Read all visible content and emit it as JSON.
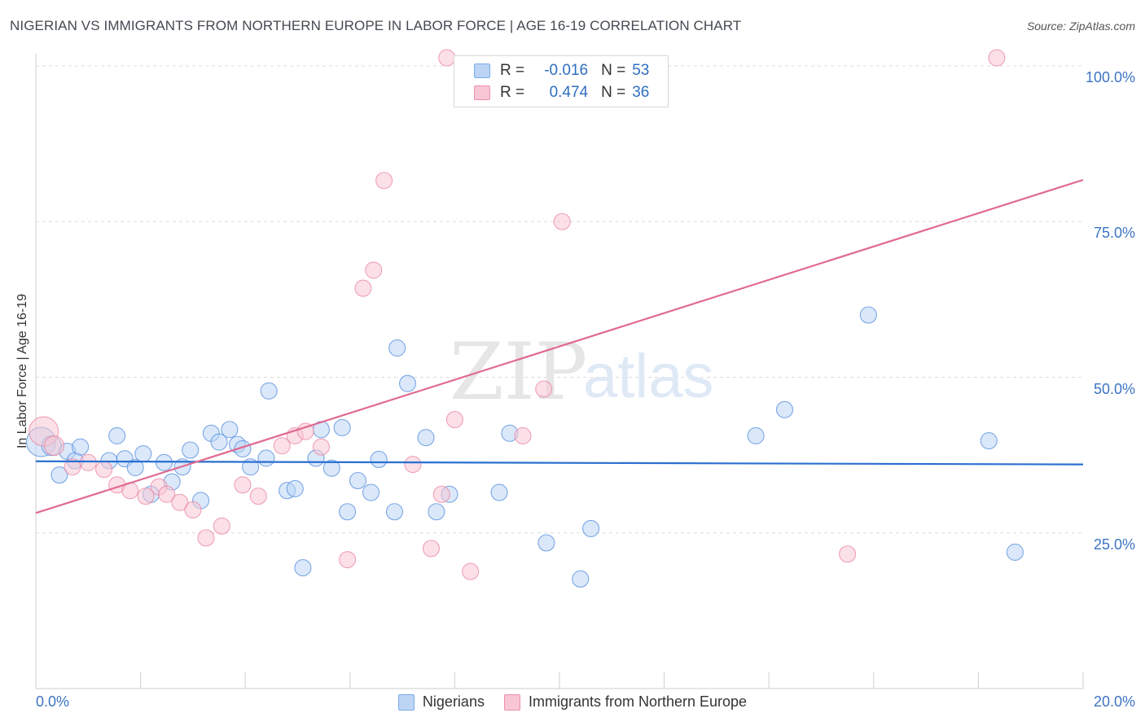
{
  "title": "NIGERIAN VS IMMIGRANTS FROM NORTHERN EUROPE IN LABOR FORCE | AGE 16-19 CORRELATION CHART",
  "source": "Source: ZipAtlas.com",
  "watermark": {
    "zip": "ZIP",
    "atlas": "atlas"
  },
  "stats": [
    {
      "r_label": "R =",
      "r": "-0.016",
      "n_label": "N =",
      "n": "53",
      "color": "#7aaae8",
      "fill": "#bcd5f5"
    },
    {
      "r_label": "R =",
      "r": "0.474",
      "n_label": "N =",
      "n": "36",
      "color": "#ee8fab",
      "fill": "#f8c6d4"
    }
  ],
  "legend": [
    {
      "label": "Nigerians",
      "color": "#7aaae8",
      "fill": "#bcd5f5"
    },
    {
      "label": "Immigrants from Northern Europe",
      "color": "#ee8fab",
      "fill": "#f8c6d4"
    }
  ],
  "chart_data": {
    "type": "scatter",
    "ylabel": "In Labor Force | Age 16-19",
    "x_tick_labels": [
      "0.0%",
      "20.0%"
    ],
    "y_tick_labels": [
      "25.0%",
      "50.0%",
      "75.0%",
      "100.0%"
    ],
    "y_ticks": [
      25,
      50,
      75,
      100
    ],
    "xlim": [
      0,
      20
    ],
    "ylim": [
      0,
      100
    ],
    "grid": true,
    "series": [
      {
        "name": "Nigerians",
        "color": "#4a86d8",
        "fill": "#bcd5f5",
        "trend": {
          "x": [
            0,
            20
          ],
          "y": [
            36.5,
            36.0
          ],
          "color": "#2a6fd0"
        },
        "points": [
          [
            0.1,
            39.6,
            18
          ],
          [
            0.3,
            39.0,
            12
          ],
          [
            0.45,
            34.3,
            10
          ],
          [
            0.6,
            38.1,
            10
          ],
          [
            0.75,
            36.6,
            10
          ],
          [
            0.85,
            38.8,
            10
          ],
          [
            1.4,
            36.6,
            10
          ],
          [
            1.55,
            40.6,
            10
          ],
          [
            1.7,
            36.9,
            10
          ],
          [
            1.9,
            35.5,
            10
          ],
          [
            2.05,
            37.7,
            10
          ],
          [
            2.2,
            31.2,
            10
          ],
          [
            2.45,
            36.3,
            10
          ],
          [
            2.6,
            33.2,
            10
          ],
          [
            2.8,
            35.6,
            10
          ],
          [
            2.95,
            38.3,
            10
          ],
          [
            3.15,
            30.2,
            10
          ],
          [
            3.35,
            41.0,
            10
          ],
          [
            3.5,
            39.6,
            10
          ],
          [
            3.7,
            41.6,
            10
          ],
          [
            3.85,
            39.2,
            10
          ],
          [
            3.95,
            38.5,
            10
          ],
          [
            4.1,
            35.6,
            10
          ],
          [
            4.4,
            37.0,
            10
          ],
          [
            4.45,
            47.8,
            10
          ],
          [
            4.8,
            31.8,
            10
          ],
          [
            4.95,
            32.1,
            10
          ],
          [
            5.1,
            19.4,
            10
          ],
          [
            5.35,
            37.0,
            10
          ],
          [
            5.45,
            41.6,
            10
          ],
          [
            5.65,
            35.4,
            10
          ],
          [
            5.85,
            41.9,
            10
          ],
          [
            5.95,
            28.4,
            10
          ],
          [
            6.15,
            33.4,
            10
          ],
          [
            6.4,
            31.5,
            10
          ],
          [
            6.55,
            36.8,
            10
          ],
          [
            6.85,
            28.4,
            10
          ],
          [
            6.9,
            54.7,
            10
          ],
          [
            7.1,
            49.0,
            10
          ],
          [
            7.45,
            40.3,
            10
          ],
          [
            7.65,
            28.4,
            10
          ],
          [
            7.9,
            31.2,
            10
          ],
          [
            8.85,
            31.5,
            10
          ],
          [
            9.05,
            41.0,
            10
          ],
          [
            9.75,
            23.4,
            10
          ],
          [
            10.4,
            17.6,
            10
          ],
          [
            10.6,
            25.7,
            10
          ],
          [
            13.75,
            40.6,
            10
          ],
          [
            14.3,
            44.8,
            10
          ],
          [
            15.9,
            60.0,
            10
          ],
          [
            18.2,
            39.8,
            10
          ],
          [
            18.7,
            21.9,
            10
          ]
        ]
      },
      {
        "name": "Immigrants from Northern Europe",
        "color": "#ea7d9c",
        "fill": "#f8c6d4",
        "trend": {
          "x": [
            0,
            20
          ],
          "y": [
            28.2,
            81.7
          ],
          "color": "#e06a91"
        },
        "points": [
          [
            0.15,
            41.3,
            18
          ],
          [
            0.35,
            39.0,
            12
          ],
          [
            0.7,
            35.6,
            10
          ],
          [
            1.0,
            36.3,
            10
          ],
          [
            1.3,
            35.2,
            10
          ],
          [
            1.55,
            32.7,
            10
          ],
          [
            1.8,
            31.8,
            10
          ],
          [
            2.1,
            30.9,
            10
          ],
          [
            2.35,
            32.4,
            10
          ],
          [
            2.5,
            31.2,
            10
          ],
          [
            2.75,
            29.9,
            10
          ],
          [
            3.0,
            28.7,
            10
          ],
          [
            3.25,
            24.2,
            10
          ],
          [
            3.55,
            26.1,
            10
          ],
          [
            3.95,
            32.7,
            10
          ],
          [
            4.25,
            30.9,
            10
          ],
          [
            4.7,
            39.0,
            10
          ],
          [
            4.95,
            40.6,
            10
          ],
          [
            5.15,
            41.3,
            10
          ],
          [
            5.45,
            38.8,
            10
          ],
          [
            5.95,
            20.7,
            10
          ],
          [
            6.25,
            64.3,
            10
          ],
          [
            6.45,
            67.2,
            10
          ],
          [
            6.65,
            81.6,
            10
          ],
          [
            7.2,
            36.0,
            10
          ],
          [
            7.55,
            22.5,
            10
          ],
          [
            7.75,
            31.2,
            10
          ],
          [
            7.85,
            101.3,
            10
          ],
          [
            8.0,
            43.2,
            10
          ],
          [
            8.3,
            18.8,
            10
          ],
          [
            9.3,
            40.6,
            10
          ],
          [
            9.7,
            48.1,
            10
          ],
          [
            10.05,
            75.0,
            10
          ],
          [
            15.5,
            21.6,
            10
          ],
          [
            18.35,
            101.3,
            10
          ]
        ]
      }
    ]
  }
}
